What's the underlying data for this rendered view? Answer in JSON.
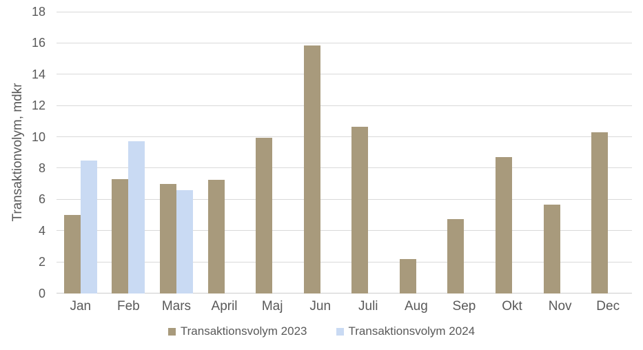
{
  "chart_data": {
    "type": "bar",
    "title": "",
    "xlabel": "",
    "ylabel": "Transaktionvolym, mdkr",
    "ylim": [
      0,
      18
    ],
    "y_ticks": [
      0,
      2,
      4,
      6,
      8,
      10,
      12,
      14,
      16,
      18
    ],
    "grid": true,
    "legend_position": "bottom",
    "categories": [
      "Jan",
      "Feb",
      "Mars",
      "April",
      "Maj",
      "Jun",
      "Juli",
      "Aug",
      "Sep",
      "Okt",
      "Nov",
      "Dec"
    ],
    "series": [
      {
        "name": "Transaktionsvolym 2023",
        "color": "#A89A7C",
        "values": [
          5.0,
          7.3,
          7.0,
          7.25,
          9.95,
          15.85,
          10.65,
          2.2,
          4.75,
          8.7,
          5.65,
          10.3
        ]
      },
      {
        "name": "Transaktionsvolym 2024",
        "color": "#C9DAF3",
        "values": [
          8.5,
          9.7,
          6.6,
          null,
          null,
          null,
          null,
          null,
          null,
          null,
          null,
          null
        ]
      }
    ],
    "appearance": {
      "gridline_color": "#D9D9D9",
      "axis_line_color": "#CDCDCD",
      "text_color": "#595959",
      "background": "#FFFFFF"
    }
  }
}
